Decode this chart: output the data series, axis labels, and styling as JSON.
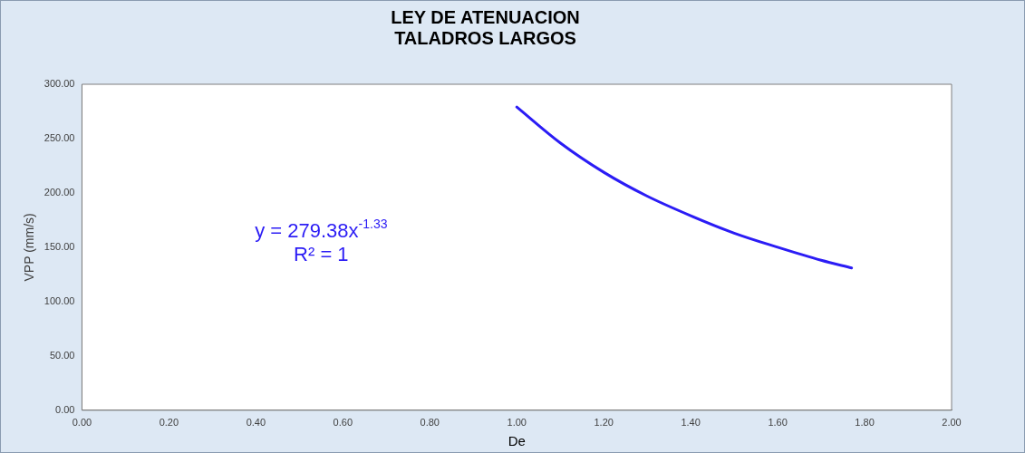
{
  "chart_data": {
    "type": "line",
    "title": "LEY DE ATENUACION\nTALADROS LARGOS",
    "xlabel": "De",
    "ylabel": "VPP (mm/s)",
    "x": [
      1.0,
      1.1,
      1.2,
      1.3,
      1.4,
      1.5,
      1.6,
      1.7,
      1.77
    ],
    "series": [
      {
        "color": "#2b1cf5",
        "values": [
          279,
          246,
          219,
          197,
          179,
          163,
          150,
          138,
          131
        ]
      }
    ],
    "xlim": [
      0,
      2
    ],
    "xticks": [
      {
        "value": 0,
        "label": "0.00"
      },
      {
        "value": 0.2,
        "label": "0.20"
      },
      {
        "value": 0.4,
        "label": "0.40"
      },
      {
        "value": 0.6,
        "label": "0.60"
      },
      {
        "value": 0.8,
        "label": "0.80"
      },
      {
        "value": 1,
        "label": "1.00"
      },
      {
        "value": 1.2,
        "label": "1.20"
      },
      {
        "value": 1.4,
        "label": "1.40"
      },
      {
        "value": 1.6,
        "label": "1.60"
      },
      {
        "value": 1.8,
        "label": "1.80"
      },
      {
        "value": 2,
        "label": "2.00"
      }
    ],
    "ylim": [
      0,
      300
    ],
    "yticks": [
      {
        "value": 0,
        "label": "0.00"
      },
      {
        "value": 50,
        "label": "50.00"
      },
      {
        "value": 100,
        "label": "100.00"
      },
      {
        "value": 150,
        "label": "150.00"
      },
      {
        "value": 200,
        "label": "200.00"
      },
      {
        "value": 250,
        "label": "250.00"
      },
      {
        "value": 300,
        "label": "300.00"
      }
    ],
    "annotations": [
      "y = 279.38x$^{-1.33}$",
      "R² = 1"
    ],
    "grid": false,
    "legend": false,
    "marker": "none",
    "line_style": "solid"
  }
}
